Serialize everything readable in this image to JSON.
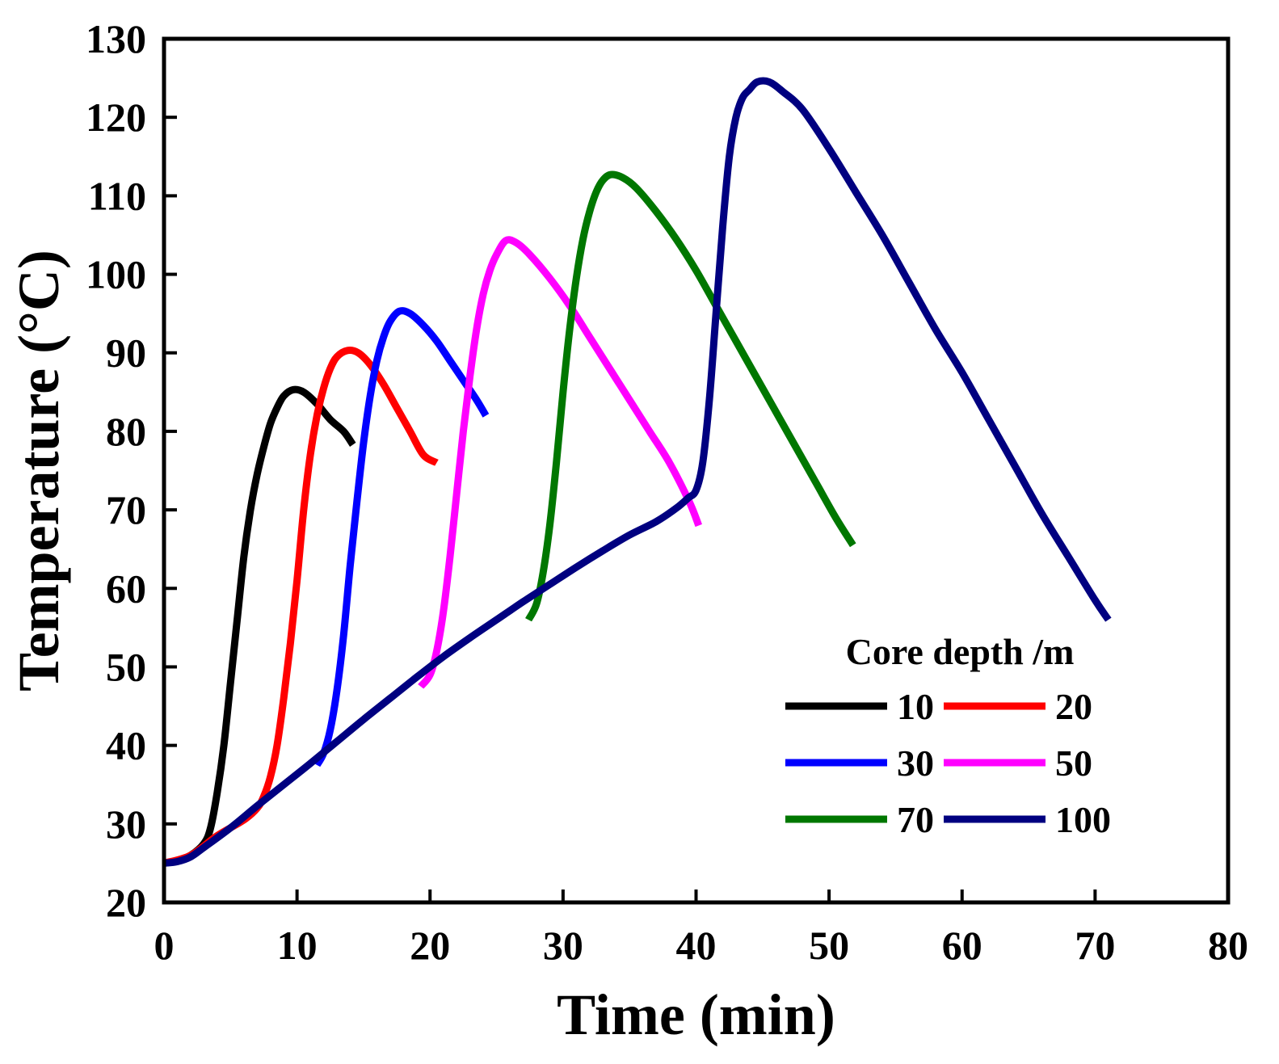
{
  "chart_data": {
    "type": "line",
    "title": "",
    "xlabel": "Time (min)",
    "ylabel": "Temperature (°C)",
    "xlim": [
      0,
      80
    ],
    "ylim": [
      20,
      130
    ],
    "xticks": [
      0,
      10,
      20,
      30,
      40,
      50,
      60,
      70,
      80
    ],
    "yticks": [
      20,
      30,
      40,
      50,
      60,
      70,
      80,
      90,
      100,
      110,
      120,
      130
    ],
    "grid": false,
    "legend": {
      "title": "Core depth /m",
      "placement": "bottom-right",
      "columns": 2
    },
    "series": [
      {
        "name": "10",
        "color": "#000000",
        "x": [
          0,
          1,
          2,
          3,
          3.5,
          4,
          4.5,
          5,
          5.5,
          6,
          6.5,
          7,
          7.5,
          8,
          8.5,
          9,
          9.7,
          10.5,
          11.5,
          12.5,
          13.5,
          14.2
        ],
        "y": [
          25,
          25.3,
          26,
          27.5,
          29.5,
          34,
          40,
          48,
          56,
          64,
          70,
          74.5,
          78,
          81,
          83,
          84.5,
          85.3,
          85,
          83.5,
          81.5,
          80,
          78.3
        ]
      },
      {
        "name": "20",
        "color": "#ff0000",
        "x": [
          0,
          2,
          4,
          6,
          7,
          7.5,
          8,
          8.5,
          9,
          9.5,
          10,
          10.5,
          11,
          11.5,
          12,
          12.5,
          13,
          13.8,
          14.6,
          15.5,
          16.5,
          17.5,
          18.5,
          19.5,
          20.5
        ],
        "y": [
          25,
          26,
          28.5,
          30.5,
          32,
          33.5,
          36,
          40,
          46,
          53,
          61,
          70,
          77,
          82,
          85.5,
          88,
          89.5,
          90.3,
          90,
          88.5,
          86,
          83,
          80,
          77,
          76
        ]
      },
      {
        "name": "30",
        "color": "#0000ff",
        "x": [
          11.5,
          12,
          12.5,
          13,
          13.5,
          14,
          14.5,
          15,
          15.5,
          16,
          16.5,
          17,
          17.7,
          18.5,
          19.5,
          20.5,
          21.5,
          22.5,
          23.5,
          24.2
        ],
        "y": [
          37.5,
          39,
          42,
          47,
          54,
          63,
          71,
          78.5,
          84.5,
          89,
          92,
          94,
          95.3,
          95,
          93.5,
          91.5,
          89,
          86.5,
          84,
          82
        ]
      },
      {
        "name": "50",
        "color": "#ff00ff",
        "x": [
          19.3,
          20,
          20.5,
          21,
          21.5,
          22,
          22.5,
          23,
          23.5,
          24,
          24.5,
          25,
          25.7,
          26.5,
          27.5,
          29,
          30.5,
          32,
          33.5,
          35,
          36.5,
          38,
          39.5,
          40.2
        ],
        "y": [
          47.5,
          49,
          52,
          57,
          64,
          72,
          80,
          87,
          93,
          97.5,
          100.5,
          102.5,
          104.3,
          104,
          102.5,
          99.5,
          96,
          92,
          88,
          84,
          80,
          76,
          71,
          68
        ]
      },
      {
        "name": "70",
        "color": "#007700",
        "x": [
          27.4,
          28,
          28.5,
          29,
          29.5,
          30,
          30.5,
          31,
          31.5,
          32,
          32.5,
          33,
          33.6,
          34.5,
          35.5,
          37,
          38.5,
          40,
          41.5,
          43,
          44.5,
          46,
          47.5,
          49,
          50.5,
          51.8
        ],
        "y": [
          56,
          58,
          62,
          68,
          76,
          85,
          93,
          99.5,
          104.5,
          108,
          110.5,
          112,
          112.7,
          112.3,
          111,
          108,
          104.5,
          100.5,
          96,
          91.5,
          87,
          82.5,
          78,
          73.5,
          69,
          65.5
        ]
      },
      {
        "name": "100",
        "color": "#000080",
        "x": [
          0,
          1,
          2,
          3,
          5,
          7,
          9,
          11,
          13,
          15,
          17,
          19,
          21,
          23,
          25,
          27,
          29,
          31,
          33,
          35,
          37,
          38.5,
          39.4,
          40,
          40.5,
          41,
          41.5,
          42,
          42.5,
          43,
          43.5,
          44,
          44.6,
          45.5,
          46.5,
          48,
          50,
          52,
          54,
          56,
          58,
          60,
          62,
          64,
          66,
          68,
          70,
          71
        ],
        "y": [
          25,
          25.2,
          25.8,
          27,
          29.5,
          32.3,
          35,
          37.7,
          40.5,
          43.3,
          46,
          48.7,
          51.3,
          53.7,
          56,
          58.3,
          60.5,
          62.7,
          64.8,
          66.8,
          68.5,
          70.2,
          71.5,
          72.5,
          76,
          84,
          95,
          106,
          115,
          120,
          122.5,
          123.5,
          124.5,
          124.5,
          123.3,
          121,
          116,
          110.5,
          105,
          99,
          93,
          87.5,
          81.5,
          75.5,
          69.5,
          64,
          58.5,
          56
        ]
      }
    ]
  }
}
